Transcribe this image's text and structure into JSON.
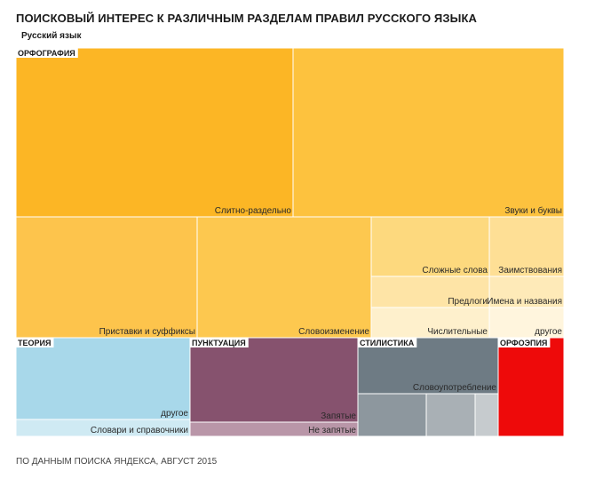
{
  "title": "ПОИСКОВЫЙ ИНТЕРЕС К РАЗЛИЧНЫМ РАЗДЕЛАМ ПРАВИЛ РУССКОГО ЯЗЫКА",
  "source_note": "ПО ДАННЫМ ПОИСКА ЯНДЕКСА, АВГУСТ 2015",
  "chart_data": {
    "type": "treemap",
    "root": "Русский язык",
    "groups": [
      {
        "name": "ОРФОГРАФИЯ",
        "color": "#fcb625",
        "cells": [
          {
            "label": "Слитно-раздельно",
            "color": "#fcb625"
          },
          {
            "label": "Звуки и буквы",
            "color": "#fdc23e"
          },
          {
            "label": "Приставки и суффиксы",
            "color": "#fdc44c"
          },
          {
            "label": "Словоизменение",
            "color": "#fdc84f"
          },
          {
            "label": "Сложные слова",
            "color": "#fdd97e"
          },
          {
            "label": "Заимствования",
            "color": "#fedf95"
          },
          {
            "label": "Предлоги",
            "color": "#fee4a6"
          },
          {
            "label": "Имена и названия",
            "color": "#feeab8"
          },
          {
            "label": "Числительные",
            "color": "#fef0cc"
          },
          {
            "label": "другое",
            "color": "#fff5dd"
          }
        ]
      },
      {
        "name": "ТЕОРИЯ",
        "color": "#a8d8ea",
        "cells": [
          {
            "label": "другое",
            "color": "#a8d8ea"
          },
          {
            "label": "Словари и справочники",
            "color": "#cfeaf3"
          }
        ]
      },
      {
        "name": "ПУНКТУАЦИЯ",
        "color": "#86526e",
        "cells": [
          {
            "label": "Запятые",
            "color": "#86526e"
          },
          {
            "label": "Не запятые",
            "color": "#b996a8"
          }
        ]
      },
      {
        "name": "СТИЛИСТИКА",
        "color": "#6e7b84",
        "cells": [
          {
            "label": "Словоупотребление",
            "color": "#6e7b84"
          },
          {
            "label": "",
            "color": "#8d979e"
          },
          {
            "label": "",
            "color": "#a9b0b5"
          },
          {
            "label": "",
            "color": "#c6cbce"
          }
        ]
      },
      {
        "name": "ОРФОЭПИЯ",
        "color": "#ee0a0a",
        "cells": [
          {
            "label": "",
            "color": "#ee0a0a"
          }
        ]
      }
    ]
  }
}
